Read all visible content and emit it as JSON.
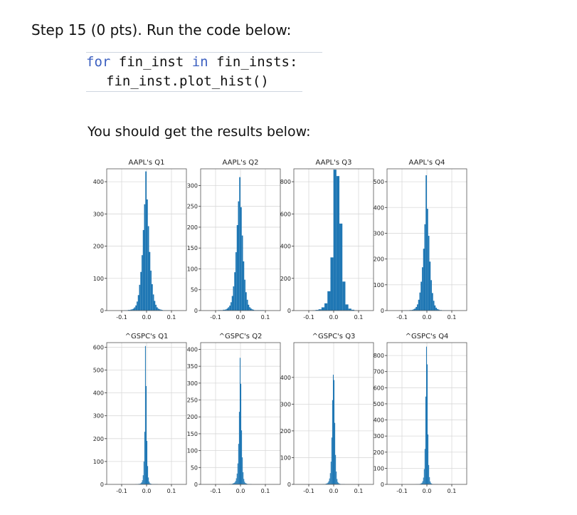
{
  "heading": "Step 15 (0 pts). Run the code below:",
  "code": {
    "line1_kw1": "for",
    "line1_var": " fin_inst ",
    "line1_kw2": "in",
    "line1_rest": " fin_insts:",
    "line2": "fin_inst.plot_hist()"
  },
  "result_text": "You should get the results below:",
  "chart_data": [
    {
      "type": "bar",
      "title": "AAPL's Q1",
      "ylim": [
        0,
        440
      ],
      "yticks": [
        "0",
        "100",
        "200",
        "300",
        "400"
      ],
      "xticks": [
        "-0.1",
        "0.0",
        "0.1"
      ],
      "xlim": [
        -0.16,
        0.16
      ],
      "bin_start": -0.09,
      "bin_width": 0.005,
      "values": [
        1,
        1,
        1,
        2,
        2,
        3,
        4,
        6,
        10,
        16,
        28,
        48,
        80,
        120,
        172,
        250,
        330,
        432,
        345,
        262,
        182,
        124,
        82,
        50,
        30,
        18,
        10,
        6,
        4,
        3,
        2,
        1,
        1,
        1,
        1,
        1,
        1
      ]
    },
    {
      "type": "bar",
      "title": "AAPL's Q2",
      "ylim": [
        0,
        340
      ],
      "yticks": [
        "0",
        "50",
        "100",
        "150",
        "200",
        "250",
        "300"
      ],
      "xticks": [
        "-0.1",
        "0.0",
        "0.1"
      ],
      "xlim": [
        -0.16,
        0.16
      ],
      "bin_start": -0.09,
      "bin_width": 0.005,
      "values": [
        1,
        1,
        1,
        1,
        2,
        2,
        3,
        5,
        8,
        12,
        20,
        35,
        58,
        92,
        140,
        205,
        262,
        320,
        248,
        180,
        118,
        74,
        44,
        26,
        14,
        8,
        5,
        3,
        2,
        1,
        1,
        1,
        1,
        1,
        1,
        1,
        1
      ]
    },
    {
      "type": "bar",
      "title": "AAPL's Q3",
      "ylim": [
        0,
        880
      ],
      "yticks": [
        "0",
        "200",
        "400",
        "600",
        "800"
      ],
      "xticks": [
        "-0.1",
        "0.0",
        "0.1"
      ],
      "xlim": [
        -0.16,
        0.16
      ],
      "bin_start": -0.085,
      "bin_width": 0.012,
      "values": [
        2,
        4,
        8,
        20,
        45,
        120,
        330,
        875,
        835,
        540,
        180,
        38,
        12,
        5,
        2
      ]
    },
    {
      "type": "bar",
      "title": "AAPL's Q4",
      "ylim": [
        0,
        550
      ],
      "yticks": [
        "0",
        "100",
        "200",
        "300",
        "400",
        "500"
      ],
      "xticks": [
        "-0.1",
        "0.0",
        "0.1"
      ],
      "xlim": [
        -0.16,
        0.16
      ],
      "bin_start": -0.09,
      "bin_width": 0.005,
      "values": [
        1,
        1,
        1,
        1,
        2,
        2,
        3,
        5,
        8,
        14,
        24,
        42,
        70,
        112,
        168,
        240,
        335,
        525,
        395,
        290,
        190,
        118,
        68,
        38,
        20,
        11,
        6,
        4,
        2,
        2,
        1,
        1,
        1,
        1,
        1,
        1,
        1
      ]
    },
    {
      "type": "bar",
      "title": "^GSPC's Q1",
      "ylim": [
        0,
        620
      ],
      "yticks": [
        "0",
        "100",
        "200",
        "300",
        "400",
        "500",
        "600"
      ],
      "xticks": [
        "-0.1",
        "0.0",
        "0.1"
      ],
      "xlim": [
        -0.16,
        0.16
      ],
      "bin_start": -0.045,
      "bin_width": 0.003,
      "values": [
        1,
        1,
        1,
        1,
        2,
        2,
        3,
        5,
        9,
        18,
        40,
        100,
        230,
        605,
        430,
        190,
        80,
        30,
        12,
        5,
        3,
        2,
        1,
        1,
        1,
        1,
        1,
        1,
        1,
        1
      ]
    },
    {
      "type": "bar",
      "title": "^GSPC's Q2",
      "ylim": [
        0,
        420
      ],
      "yticks": [
        "0",
        "50",
        "100",
        "150",
        "200",
        "250",
        "300",
        "350",
        "400"
      ],
      "xticks": [
        "-0.1",
        "0.0",
        "0.1"
      ],
      "xlim": [
        -0.16,
        0.16
      ],
      "bin_start": -0.045,
      "bin_width": 0.003,
      "values": [
        1,
        1,
        1,
        1,
        2,
        3,
        4,
        6,
        10,
        18,
        32,
        62,
        120,
        215,
        375,
        298,
        160,
        80,
        36,
        16,
        8,
        4,
        3,
        2,
        1,
        1,
        1,
        1,
        1,
        1
      ]
    },
    {
      "type": "bar",
      "title": "^GSPC's Q3",
      "ylim": [
        0,
        530
      ],
      "yticks": [
        "0",
        "100",
        "200",
        "300",
        "400"
      ],
      "xticks": [
        "-0.1",
        "0.0",
        "0.1"
      ],
      "xlim": [
        -0.16,
        0.16
      ],
      "bin_start": -0.045,
      "bin_width": 0.003,
      "values": [
        1,
        1,
        1,
        1,
        2,
        3,
        4,
        7,
        12,
        22,
        42,
        85,
        175,
        315,
        410,
        390,
        230,
        110,
        48,
        20,
        9,
        5,
        3,
        2,
        1,
        1,
        1,
        1,
        1,
        1
      ]
    },
    {
      "type": "bar",
      "title": "^GSPC's Q4",
      "ylim": [
        0,
        880
      ],
      "yticks": [
        "0",
        "100",
        "200",
        "300",
        "400",
        "500",
        "600",
        "700",
        "800"
      ],
      "xticks": [
        "-0.1",
        "0.0",
        "0.1"
      ],
      "xlim": [
        -0.16,
        0.16
      ],
      "bin_start": -0.045,
      "bin_width": 0.003,
      "values": [
        1,
        1,
        1,
        1,
        2,
        2,
        4,
        6,
        10,
        20,
        42,
        95,
        220,
        545,
        855,
        745,
        310,
        120,
        45,
        18,
        8,
        4,
        2,
        1,
        1,
        1,
        1,
        1,
        1,
        1
      ]
    }
  ]
}
